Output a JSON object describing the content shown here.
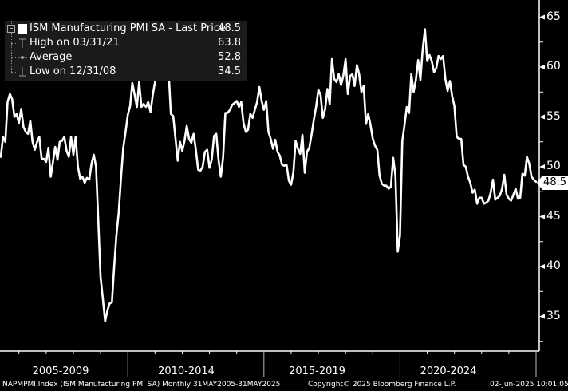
{
  "legend": {
    "series_label": "ISM Manufacturing PMI SA - Last Price",
    "series_value": "48.5",
    "high_label": "High on 03/31/21",
    "high_value": "63.8",
    "average_label": "Average",
    "average_value": "52.8",
    "low_label": "Low on 12/31/08",
    "low_value": "34.5"
  },
  "last_price_tag": "48.5",
  "y_axis": {
    "ticks": [
      "65",
      "60",
      "55",
      "50",
      "45",
      "40",
      "35"
    ]
  },
  "x_axis": {
    "periods": [
      "2005-2009",
      "2010-2014",
      "2015-2019",
      "2020-2024"
    ]
  },
  "footer": {
    "left": "NAPMPMI Index (ISM Manufacturing PMI SA)  Monthly 31MAY2005-31MAY2025",
    "center": "Copyright© 2025 Bloomberg Finance L.P.",
    "right": "02-Jun-2025 10:01:05"
  },
  "colors": {
    "background": "#000000",
    "line": "#ffffff",
    "legend_bg": "#1b1b1b"
  },
  "chart_data": {
    "type": "line",
    "title": "ISM Manufacturing PMI SA",
    "xlabel": "",
    "ylabel": "",
    "ylim": [
      32,
      66
    ],
    "y_ticks": [
      35,
      40,
      45,
      50,
      55,
      60,
      65
    ],
    "x_tick_labels": [
      "2005-2009",
      "2010-2014",
      "2015-2019",
      "2020-2024"
    ],
    "grid": false,
    "legend_position": "top-left",
    "frequency": "Monthly",
    "x_start": "2005-05",
    "x_end": "2025-05",
    "series": [
      {
        "name": "ISM Manufacturing PMI SA - Last Price",
        "last": 48.5,
        "high": {
          "date": "03/31/21",
          "value": 63.8
        },
        "average": 52.8,
        "low": {
          "date": "12/31/08",
          "value": 34.5
        },
        "values": [
          51.0,
          53.0,
          52.5,
          56.5,
          57.3,
          56.8,
          55.0,
          55.3,
          54.4,
          55.8,
          54.0,
          53.5,
          53.3,
          54.6,
          52.5,
          51.7,
          52.5,
          53.0,
          50.8,
          50.8,
          50.5,
          51.9,
          49.0,
          50.5,
          52.0,
          50.7,
          52.5,
          52.6,
          53.0,
          51.6,
          51.0,
          53.0,
          51.2,
          53.0,
          50.0,
          48.8,
          49.0,
          48.4,
          48.9,
          48.7,
          50.3,
          51.2,
          50.0,
          44.4,
          38.9,
          36.8,
          34.5,
          35.6,
          36.3,
          36.4,
          40.1,
          43.2,
          45.4,
          48.9,
          51.9,
          53.5,
          55.2,
          56.1,
          58.4,
          57.2,
          56.0,
          58.5,
          56.0,
          56.3,
          56.0,
          56.5,
          55.5,
          57.2,
          58.5,
          59.0,
          61.4,
          59.7,
          60.4,
          60.4,
          59.5,
          55.3,
          55.1,
          52.9,
          50.6,
          52.5,
          51.6,
          52.6,
          54.1,
          52.8,
          52.4,
          53.3,
          51.7,
          49.7,
          49.6,
          50.0,
          51.5,
          51.7,
          49.9,
          50.7,
          53.1,
          53.3,
          50.7,
          49.0,
          50.9,
          55.4,
          55.4,
          55.7,
          56.2,
          56.4,
          56.6,
          56.0,
          56.5,
          54.4,
          53.5,
          53.7,
          55.3,
          54.9,
          55.7,
          56.5,
          58.0,
          56.6,
          55.7,
          56.6,
          53.5,
          52.8,
          51.8,
          52.7,
          51.5,
          51.1,
          50.2,
          50.1,
          50.2,
          48.6,
          48.2,
          49.5,
          52.6,
          51.8,
          51.3,
          53.2,
          49.4,
          51.5,
          51.9,
          53.2,
          54.7,
          56.0,
          57.7,
          57.2,
          54.9,
          55.8,
          57.8,
          56.3,
          60.8,
          58.8,
          58.5,
          59.3,
          58.2,
          59.1,
          60.8,
          57.3,
          59.1,
          59.3,
          58.1,
          60.2,
          59.3,
          57.5,
          58.1,
          54.3,
          55.3,
          54.2,
          52.8,
          52.1,
          51.7,
          49.1,
          48.3,
          48.1,
          48.1,
          47.8,
          48.0,
          50.9,
          49.1,
          41.5,
          43.1,
          52.6,
          54.2,
          56.0,
          55.4,
          59.3,
          57.5,
          58.7,
          60.7,
          58.7,
          61.7,
          63.8,
          60.6,
          61.2,
          60.6,
          59.5,
          59.9,
          61.1,
          60.8,
          61.1,
          58.8,
          57.6,
          58.6,
          57.1,
          56.1,
          53.0,
          52.8,
          52.8,
          50.2,
          50.0,
          49.0,
          48.4,
          47.4,
          47.7,
          46.3,
          46.9,
          46.9,
          46.3,
          46.4,
          46.6,
          47.4,
          48.7,
          46.7,
          46.9,
          47.1,
          47.8,
          49.2,
          47.2,
          46.8,
          46.6,
          47.2,
          47.8,
          46.8,
          46.9,
          49.3,
          49.1,
          51.0,
          50.3,
          49.0,
          48.7,
          48.5
        ]
      }
    ]
  }
}
